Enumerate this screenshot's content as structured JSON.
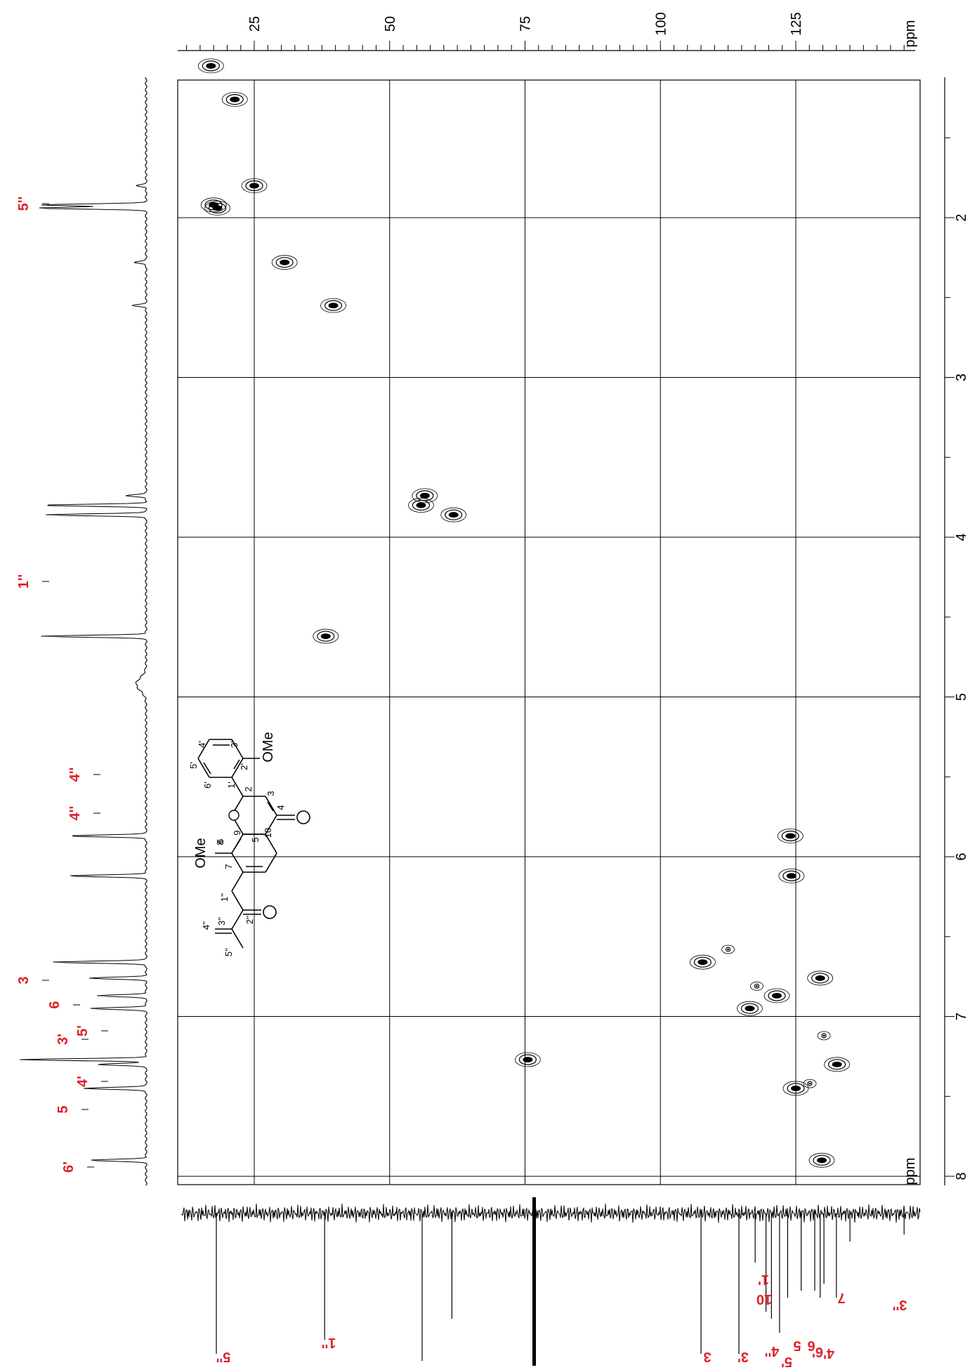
{
  "chart_data": {
    "type": "scatter",
    "subtitle": "",
    "x_axis": {
      "label": "ppm",
      "ticks": [
        25,
        50,
        75,
        100,
        125
      ],
      "range": [
        10,
        150
      ],
      "minor_step": 2.5
    },
    "y_axis": {
      "label": "ppm",
      "ticks": [
        2,
        3,
        4,
        5,
        6,
        7,
        8
      ],
      "range": [
        1,
        8.9
      ],
      "minor_step": 0.5
    },
    "grid": true,
    "correlations": [
      {
        "c": 18.2,
        "h": 1.94
      },
      {
        "c": 17.5,
        "h": 1.92
      },
      {
        "c": 17.0,
        "h": 1.05
      },
      {
        "c": 21.4,
        "h": 1.26
      },
      {
        "c": 25.0,
        "h": 1.8
      },
      {
        "c": 30.6,
        "h": 2.28
      },
      {
        "c": 39.6,
        "h": 2.55
      },
      {
        "c": 38.2,
        "h": 4.62
      },
      {
        "c": 55.8,
        "h": 3.8
      },
      {
        "c": 61.8,
        "h": 3.86
      },
      {
        "c": 56.5,
        "h": 3.74
      },
      {
        "c": 75.5,
        "h": 7.27
      },
      {
        "c": 107.8,
        "h": 6.66
      },
      {
        "c": 116.5,
        "h": 6.95
      },
      {
        "c": 121.5,
        "h": 6.87
      },
      {
        "c": 124.0,
        "h": 5.87
      },
      {
        "c": 124.2,
        "h": 6.12
      },
      {
        "c": 125.0,
        "h": 7.45
      },
      {
        "c": 129.5,
        "h": 6.76
      },
      {
        "c": 129.8,
        "h": 7.9
      },
      {
        "c": 132.6,
        "h": 7.3
      },
      {
        "c": 112.5,
        "h": 6.58
      },
      {
        "c": 117.8,
        "h": 6.81
      },
      {
        "c": 130.2,
        "h": 7.12
      },
      {
        "c": 127.6,
        "h": 7.42
      }
    ],
    "h_peak_labels": [
      "5''",
      "1''",
      "4''",
      "4''",
      "3",
      "6",
      "5'",
      "3'",
      "4'",
      "5",
      "6'"
    ],
    "c_peak_labels": [
      "5''",
      "1''",
      "3",
      "3'",
      "4''",
      "5'",
      "10",
      "1'",
      "5",
      "6",
      "6'",
      "4'",
      "7",
      "3''"
    ],
    "structure_labels": {
      "ring_b": [
        "3'",
        "4'",
        "5'",
        "6'",
        "1'",
        "2'"
      ],
      "ring_ac": [
        "2",
        "3",
        "4",
        "10",
        "5",
        "6",
        "7",
        "8",
        "9"
      ],
      "side_chain": [
        "1''",
        "2''",
        "3''",
        "4''",
        "5''"
      ],
      "methoxy": "OMe",
      "methoxy_2": "OMe"
    }
  }
}
